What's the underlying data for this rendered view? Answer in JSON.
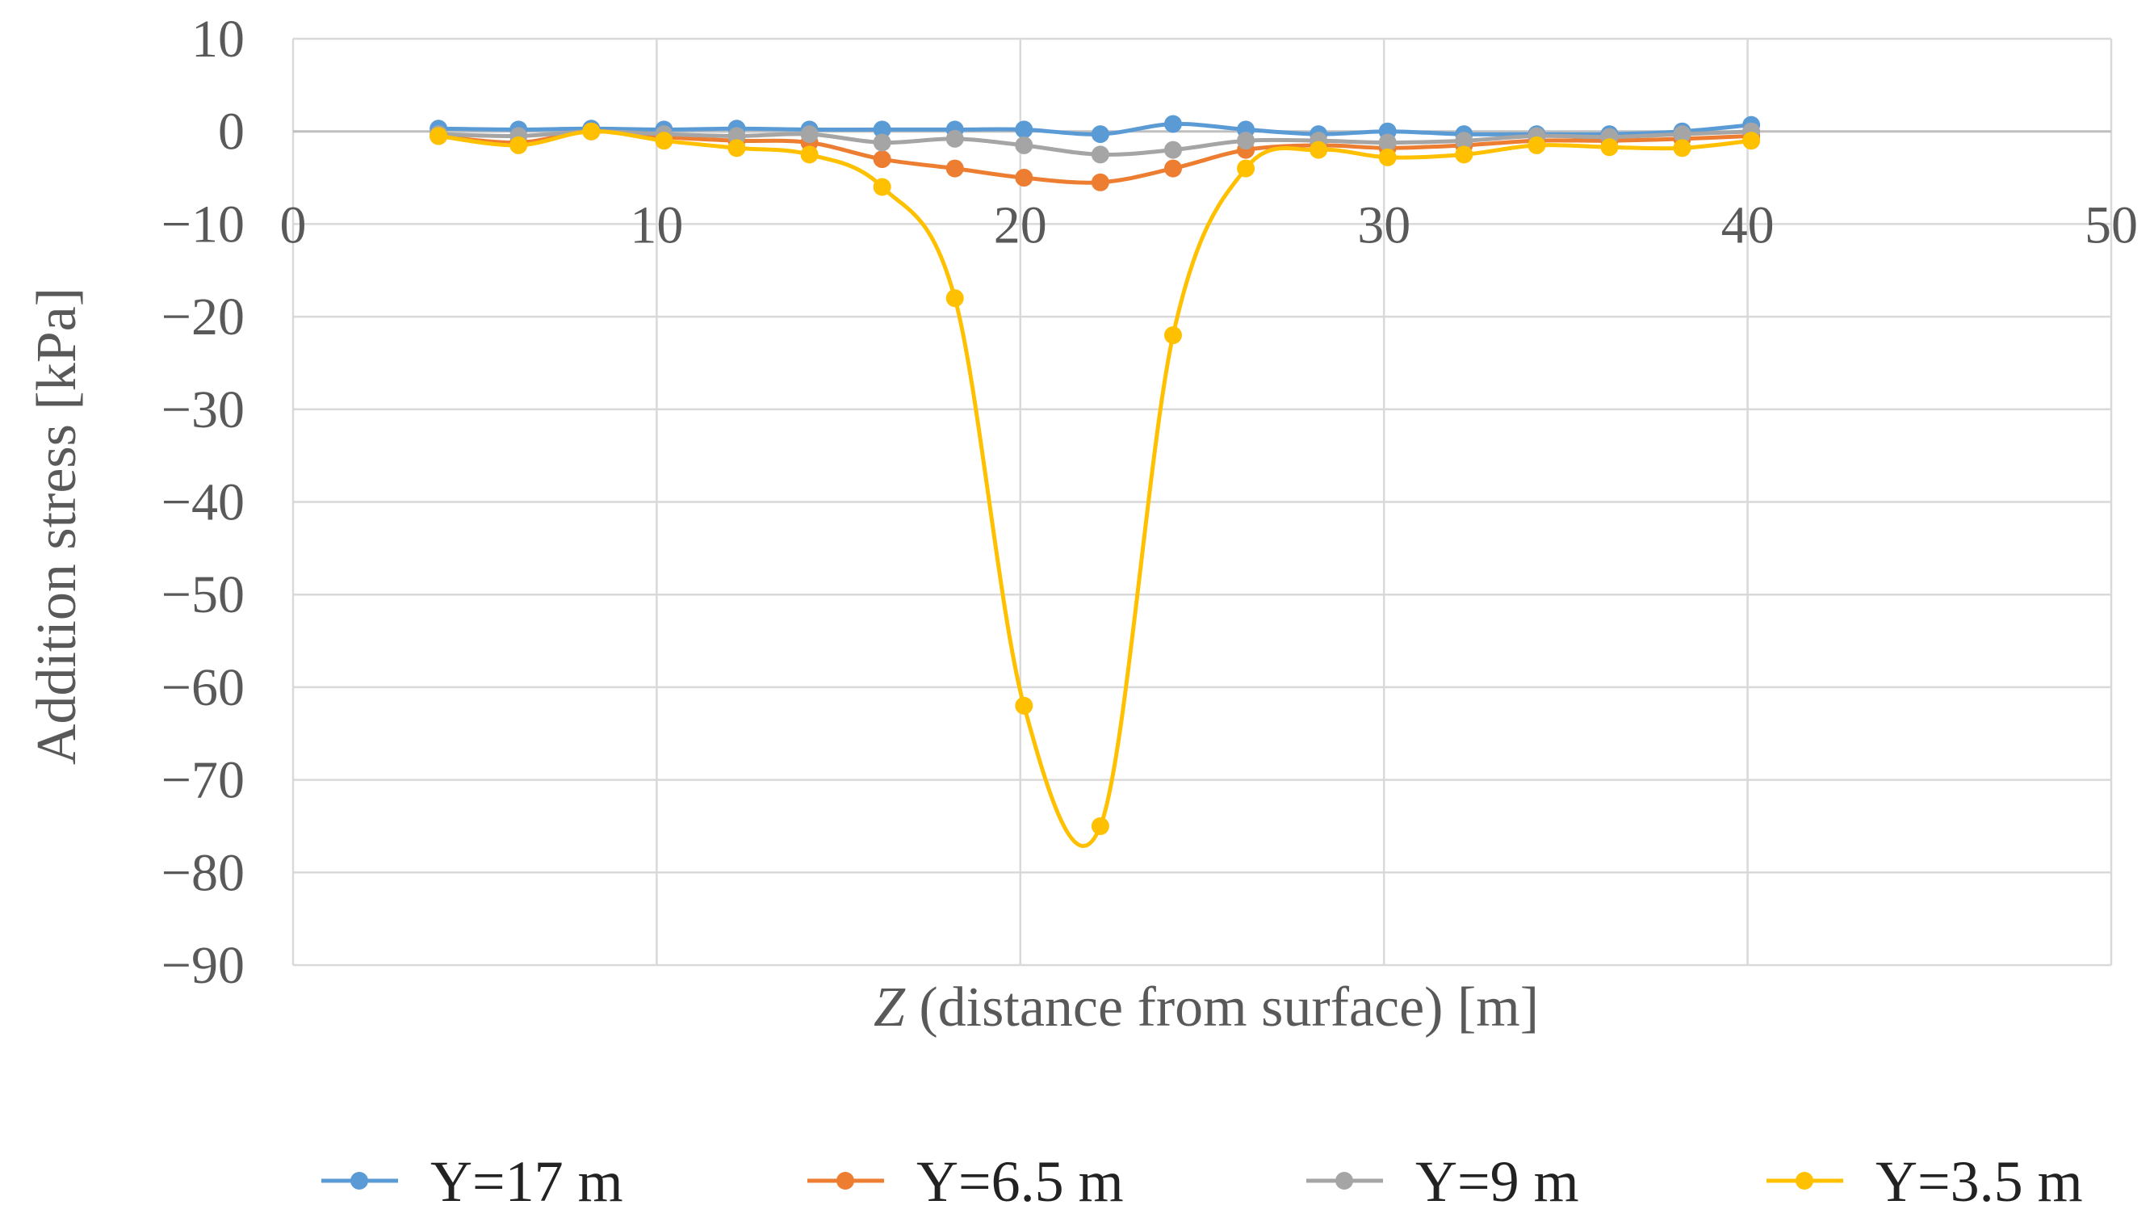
{
  "chart_data": {
    "type": "line",
    "title": "",
    "xlabel_italic": "Z",
    "xlabel_rest": " (distance from surface) [m]",
    "ylabel": "Addition stress [kPa]",
    "xlim": [
      0,
      50
    ],
    "ylim": [
      -90,
      10
    ],
    "xticks": [
      0,
      10,
      20,
      30,
      40,
      50
    ],
    "yticks": [
      10,
      0,
      -10,
      -20,
      -30,
      -40,
      -50,
      -60,
      -70,
      -80,
      -90
    ],
    "tick_labels_x": [
      "0",
      "10",
      "20",
      "30",
      "40",
      "50"
    ],
    "tick_labels_y": [
      "10",
      "0",
      "−10",
      "−20",
      "−30",
      "−40",
      "−50",
      "−60",
      "−70",
      "−80",
      "−90"
    ],
    "grid": true,
    "legend_position": "bottom",
    "x": [
      4,
      6.2,
      8.2,
      10.2,
      12.2,
      14.2,
      16.2,
      18.2,
      20.1,
      22.2,
      24.2,
      26.2,
      28.2,
      30.1,
      32.2,
      34.2,
      36.2,
      38.2,
      40.1
    ],
    "series": [
      {
        "name": "Y=17 m",
        "color": "#5b9bd5",
        "values": [
          0.3,
          0.2,
          0.3,
          0.2,
          0.3,
          0.2,
          0.2,
          0.2,
          0.2,
          -0.3,
          0.8,
          0.2,
          -0.3,
          0.0,
          -0.3,
          -0.3,
          -0.3,
          0.0,
          0.7
        ]
      },
      {
        "name": "Y=6.5 m",
        "color": "#ed7d31",
        "values": [
          -0.5,
          -1.2,
          0.0,
          -0.6,
          -1.0,
          -1.2,
          -3.0,
          -4.0,
          -5.0,
          -5.5,
          -4.0,
          -2.0,
          -1.5,
          -1.8,
          -1.5,
          -1.0,
          -1.0,
          -0.8,
          -0.5
        ]
      },
      {
        "name": "Y=9 m",
        "color": "#a5a5a5",
        "values": [
          -0.3,
          -0.5,
          0.0,
          -0.3,
          -0.5,
          -0.3,
          -1.2,
          -0.8,
          -1.5,
          -2.5,
          -2.0,
          -1.0,
          -1.0,
          -1.2,
          -1.0,
          -0.5,
          -0.6,
          -0.3,
          0.0
        ]
      },
      {
        "name": "Y=3.5 m",
        "color": "#ffc000",
        "values": [
          -0.5,
          -1.5,
          0.0,
          -1.0,
          -1.8,
          -2.5,
          -6.0,
          -18.0,
          -62.0,
          -75.0,
          -22.0,
          -4.0,
          -2.0,
          -2.8,
          -2.5,
          -1.5,
          -1.7,
          -1.8,
          -1.0
        ]
      }
    ]
  }
}
